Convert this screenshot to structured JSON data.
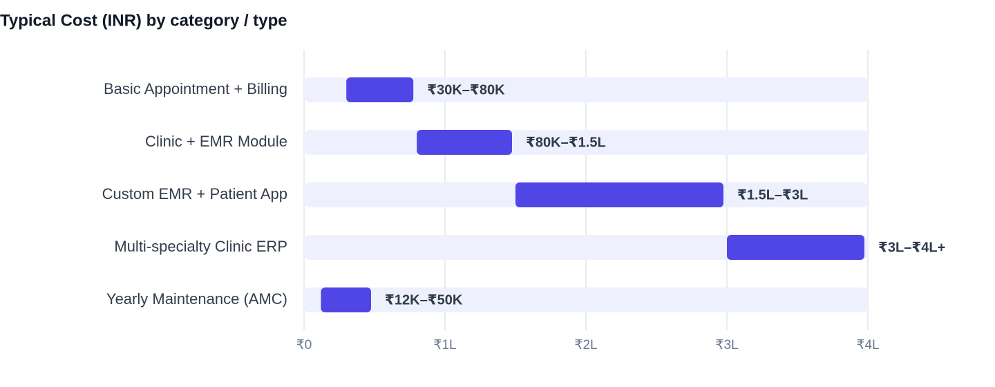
{
  "chart_data": {
    "type": "range_bar",
    "title": "Typical Cost (INR) by category / type",
    "categories": [
      "Basic Appointment + Billing",
      "Clinic + EMR Module",
      "Custom EMR + Patient App",
      "Multi-specialty Clinic ERP",
      "Yearly Maintenance (AMC)"
    ],
    "low": [
      30000,
      80000,
      150000,
      300000,
      12000
    ],
    "high": [
      80000,
      150000,
      300000,
      400000,
      50000
    ],
    "value_labels": [
      "₹30K–₹80K",
      "₹80K–₹1.5L",
      "₹1.5L–₹3L",
      "₹3L–₹4L+",
      "₹12K–₹50K"
    ],
    "color": "#4f46e5",
    "xlim": [
      0,
      400000
    ],
    "xticks": [
      {
        "value": 0,
        "label": "₹0"
      },
      {
        "value": 100000,
        "label": "₹1L"
      },
      {
        "value": 200000,
        "label": "₹2L"
      },
      {
        "value": 300000,
        "label": "₹3L"
      },
      {
        "value": 400000,
        "label": "₹4L"
      }
    ],
    "grid": true
  }
}
